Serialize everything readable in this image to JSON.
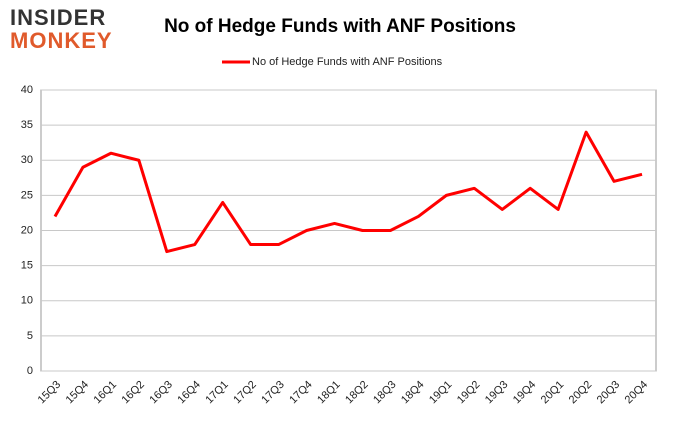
{
  "logo": [
    "INSIDER",
    "MONKEY"
  ],
  "chart_data": {
    "type": "line",
    "title": "No of Hedge Funds with ANF Positions",
    "categories": [
      "15Q3",
      "15Q4",
      "16Q1",
      "16Q2",
      "16Q3",
      "16Q4",
      "17Q1",
      "17Q2",
      "17Q3",
      "17Q4",
      "18Q1",
      "18Q2",
      "18Q3",
      "18Q4",
      "19Q1",
      "19Q2",
      "19Q3",
      "19Q4",
      "20Q1",
      "20Q2",
      "20Q3",
      "20Q4"
    ],
    "series": [
      {
        "name": "No of Hedge Funds with ANF Positions",
        "color": "#ff0000",
        "values": [
          22,
          29,
          31,
          30,
          17,
          18,
          24,
          18,
          18,
          20,
          21,
          20,
          20,
          22,
          25,
          26,
          23,
          26,
          23,
          34,
          27,
          28
        ]
      }
    ],
    "ylim": [
      0,
      40
    ],
    "yticks": [
      0,
      5,
      10,
      15,
      20,
      25,
      30,
      35,
      40
    ],
    "grid": true,
    "legend": "top"
  }
}
